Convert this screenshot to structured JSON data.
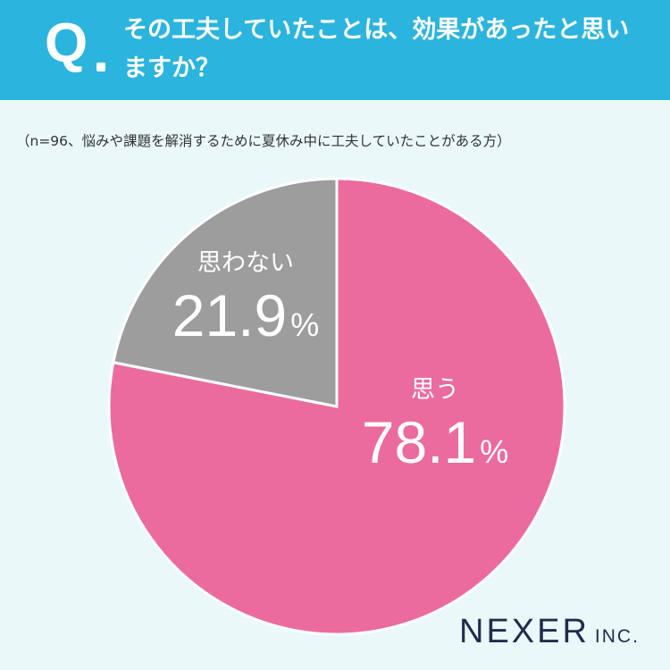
{
  "header": {
    "q_mark": "Q",
    "question": "その工夫していたことは、効果があったと思いますか？",
    "background_color": "#2bb4dd"
  },
  "note": "（n=96、悩みや課題を解消するために夏休み中に工夫していたことがある方）",
  "chart_data": {
    "type": "pie",
    "title": "その工夫していたことは、効果があったと思いますか？",
    "n": 96,
    "slices": [
      {
        "label": "思う",
        "value": 78.1,
        "value_text": "78.1",
        "unit": "%",
        "color": "#eb6b9e"
      },
      {
        "label": "思わない",
        "value": 21.9,
        "value_text": "21.9",
        "unit": "%",
        "color": "#9d9d9d"
      }
    ],
    "start": "12 o'clock",
    "direction": "clockwise"
  },
  "logo": {
    "main": "NEXER",
    "sub": "INC."
  }
}
